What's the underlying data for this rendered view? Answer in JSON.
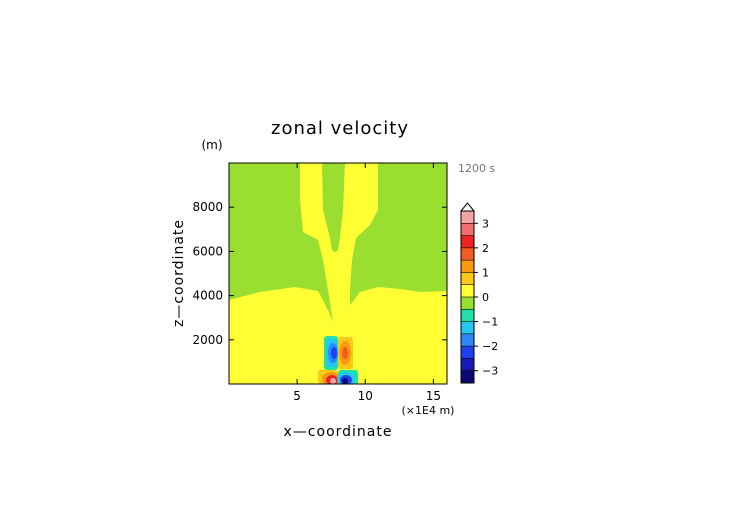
{
  "chart_data": {
    "type": "heatmap",
    "title": "zonal velocity",
    "xlabel": "x—coordinate",
    "ylabel": "z—coordinate",
    "x_unit": "(×1E4 m)",
    "y_unit": "(m)",
    "time_label": "1200 s",
    "xlim": [
      0,
      16
    ],
    "ylim": [
      0,
      10000
    ],
    "x_ticks": [
      5,
      10,
      15
    ],
    "y_ticks": [
      2000,
      4000,
      6000,
      8000
    ],
    "colorbar": {
      "min": -3.5,
      "max": 3.5,
      "tick_values": [
        3,
        2,
        1,
        0,
        -1,
        -2,
        -3
      ],
      "tick_labels": [
        "3",
        "2",
        "1",
        "0",
        "−1",
        "−2",
        "−3"
      ],
      "levels": [
        {
          "from": 3.0,
          "to": 3.5,
          "color": "#f4a3a3"
        },
        {
          "from": 2.5,
          "to": 3.0,
          "color": "#f06e6e"
        },
        {
          "from": 2.0,
          "to": 2.5,
          "color": "#ee2222"
        },
        {
          "from": 1.5,
          "to": 2.0,
          "color": "#f55a20"
        },
        {
          "from": 1.0,
          "to": 1.5,
          "color": "#fa9a10"
        },
        {
          "from": 0.5,
          "to": 1.0,
          "color": "#fdc818"
        },
        {
          "from": 0.0,
          "to": 0.5,
          "color": "#ffff33"
        },
        {
          "from": -0.5,
          "to": 0.0,
          "color": "#9adf30"
        },
        {
          "from": -1.0,
          "to": -0.5,
          "color": "#22e0a8"
        },
        {
          "from": -1.5,
          "to": -1.0,
          "color": "#22c8f0"
        },
        {
          "from": -2.0,
          "to": -1.5,
          "color": "#2a88f8"
        },
        {
          "from": -2.5,
          "to": -2.0,
          "color": "#2040f0"
        },
        {
          "from": -3.0,
          "to": -2.5,
          "color": "#1818b8"
        },
        {
          "from": -3.5,
          "to": -3.0,
          "color": "#0a0a70"
        }
      ]
    },
    "field": {
      "background_level": -0.25,
      "regions": [
        {
          "kind": "positive_low_level_flow",
          "value": 0.3,
          "x": [
            0,
            16
          ],
          "z": [
            0,
            3000
          ]
        },
        {
          "kind": "positive_plume",
          "value": 0.3,
          "x": [
            6.5,
            10.0
          ],
          "z": [
            0,
            10000
          ]
        },
        {
          "kind": "negative_core",
          "value": -2.8,
          "x": 7.3,
          "z": 1300
        },
        {
          "kind": "positive_core",
          "value": 1.8,
          "x": 8.4,
          "z": 1300
        },
        {
          "kind": "positive_core",
          "value": 3.2,
          "x": 7.3,
          "z": 250
        },
        {
          "kind": "negative_core",
          "value": -3.2,
          "x": 8.4,
          "z": 250
        }
      ]
    }
  }
}
